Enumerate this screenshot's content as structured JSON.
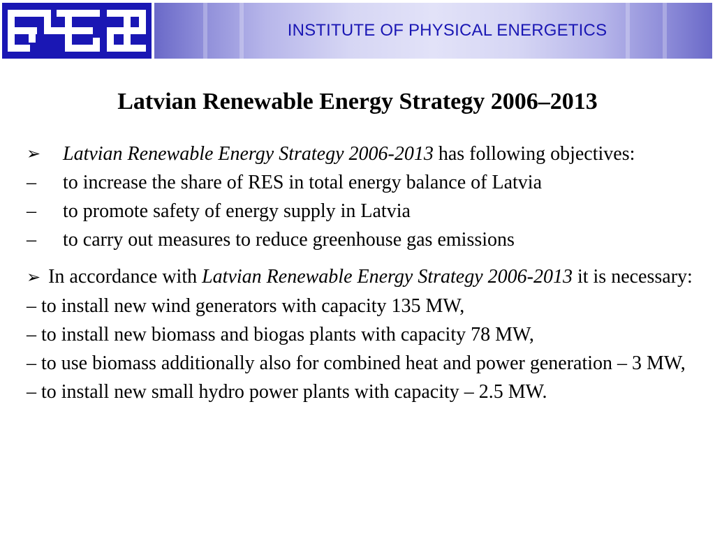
{
  "header": {
    "org_title": "INSTITUTE OF PHYSICAL ENERGETICS",
    "logo_text": "FEI",
    "colors": {
      "brand_blue": "#1a17b4",
      "band_light": "#e2e2f8",
      "band_dark": "#6a69c8"
    }
  },
  "slide": {
    "title": "Latvian Renewable Energy Strategy 2006–2013",
    "objectives": {
      "bullet_icon": "arrow-bullet-icon",
      "lead_italic": "Latvian Renewable Energy Strategy 2006-2013",
      "lead_rest": " has following objectives:",
      "items": [
        {
          "marker": "–",
          "text": "to increase the share of RES in total energy balance of Latvia"
        },
        {
          "marker": "–",
          "text": "to promote safety of energy supply in Latvia"
        },
        {
          "marker": "–",
          "text": "to carry out measures to reduce greenhouse gas emissions"
        }
      ]
    },
    "necessary": {
      "bullet_icon": "arrow-bullet-icon",
      "lead_prefix": " In accordance with ",
      "lead_italic": "Latvian Renewable Energy Strategy  2006-2013",
      "lead_rest": " it is necessary:",
      "items": [
        " – to install new wind generators with capacity 135 MW,",
        " – to install new biomass and biogas plants with capacity 78 MW,",
        " – to use biomass additionally also for combined heat and power generation – 3 MW,",
        "– to install new small hydro power plants with capacity – 2.5 MW."
      ]
    }
  }
}
